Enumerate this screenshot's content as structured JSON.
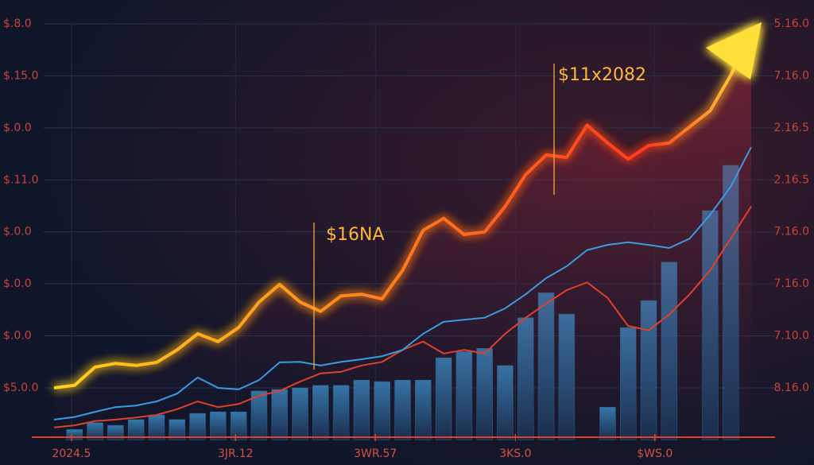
{
  "chart_data": {
    "type": "line",
    "x": [
      0,
      1,
      2,
      3,
      4,
      5,
      6,
      7,
      8,
      9,
      10,
      11,
      12,
      13,
      14,
      15,
      16,
      17,
      18,
      19,
      20,
      21,
      22,
      23,
      24,
      25,
      26,
      27,
      28,
      29,
      30,
      31,
      32,
      33,
      34
    ],
    "xlim": [
      0,
      34
    ],
    "xticks": [
      {
        "value": 0.85,
        "label": "2024.5"
      },
      {
        "value": 8.85,
        "label": "3JR.12"
      },
      {
        "value": 15.67,
        "label": "3WR.57"
      },
      {
        "value": 22.5,
        "label": "3KS.0"
      },
      {
        "value": 29.3,
        "label": "$WS.0"
      }
    ],
    "ylim": [
      -1,
      7
    ],
    "yticks": [
      {
        "value": 0,
        "label": "$5.0.0"
      },
      {
        "value": 1,
        "label": "$.0.0"
      },
      {
        "value": 2,
        "label": "$.0.0"
      },
      {
        "value": 3,
        "label": "$.0.0"
      },
      {
        "value": 4,
        "label": "$.11.0"
      },
      {
        "value": 5,
        "label": "$.0.0"
      },
      {
        "value": 6,
        "label": "$.15.0"
      },
      {
        "value": 7,
        "label": "$.8.0"
      }
    ],
    "y2lim": [
      -1,
      7
    ],
    "y2ticks": [
      {
        "value": 0,
        "label": "8.16.0"
      },
      {
        "value": 1,
        "label": "7.10.0"
      },
      {
        "value": 2,
        "label": "7.16.0"
      },
      {
        "value": 3,
        "label": "7.16.0"
      },
      {
        "value": 4,
        "label": "2.16.5"
      },
      {
        "value": 5,
        "label": "2.16.5"
      },
      {
        "value": 6,
        "label": "7.16.0"
      },
      {
        "value": 7,
        "label": "5.16.0"
      }
    ],
    "grid": true,
    "series": [
      {
        "type": "bar",
        "color": "#2b6f9f",
        "values": [
          null,
          -0.8,
          -0.67,
          -0.72,
          -0.61,
          -0.52,
          -0.61,
          -0.49,
          -0.46,
          -0.46,
          -0.06,
          -0.03,
          0,
          0.05,
          0.05,
          0.15,
          0.12,
          0.15,
          0.15,
          0.58,
          0.7,
          0.76,
          0.43,
          1.35,
          1.83,
          1.42,
          null,
          -0.37,
          1.16,
          1.68,
          2.42,
          null,
          3.41,
          4.28,
          null
        ]
      },
      {
        "type": "line",
        "color": "#e0402a",
        "values": [
          -0.76,
          -0.72,
          -0.64,
          -0.61,
          -0.57,
          -0.52,
          -0.41,
          -0.26,
          -0.37,
          -0.31,
          -0.15,
          -0.06,
          0.12,
          0.28,
          0.31,
          0.43,
          0.5,
          0.73,
          0.89,
          0.66,
          0.73,
          0.66,
          1.04,
          1.35,
          1.62,
          1.88,
          2.03,
          1.73,
          1.19,
          1.11,
          1.41,
          1.8,
          2.26,
          2.87,
          3.49
        ]
      },
      {
        "type": "line",
        "color": "#3a9be0",
        "values": [
          -0.61,
          -0.56,
          -0.46,
          -0.37,
          -0.34,
          -0.26,
          -0.11,
          0.2,
          0,
          -0.03,
          0.15,
          0.49,
          0.5,
          0.43,
          0.5,
          0.55,
          0.61,
          0.73,
          1.04,
          1.27,
          1.31,
          1.35,
          1.53,
          1.8,
          2.11,
          2.34,
          2.65,
          2.75,
          2.8,
          2.75,
          2.69,
          2.87,
          3.33,
          3.87,
          4.63
        ]
      },
      {
        "type": "glow",
        "color": "#ff7a1a",
        "values": [
          0,
          0.05,
          0.4,
          0.47,
          0.43,
          0.49,
          0.73,
          1.04,
          0.89,
          1.16,
          1.65,
          1.99,
          1.65,
          1.47,
          1.77,
          1.8,
          1.71,
          2.26,
          3.03,
          3.26,
          2.95,
          3,
          3.49,
          4.1,
          4.48,
          4.43,
          5.05,
          4.71,
          4.4,
          4.66,
          4.71,
          5.02,
          5.33,
          6.01,
          6.85
        ]
      }
    ],
    "annotations": [
      {
        "text": "$16NA"
      },
      {
        "text": "$11x2082"
      }
    ]
  }
}
